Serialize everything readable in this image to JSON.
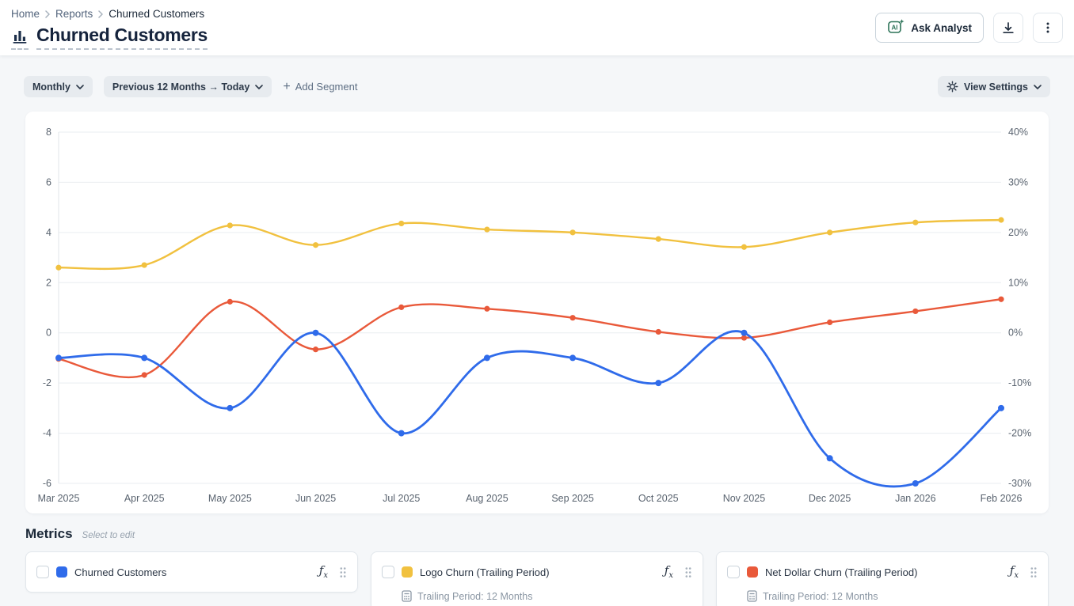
{
  "breadcrumb": {
    "home": "Home",
    "reports": "Reports",
    "current": "Churned Customers"
  },
  "page": {
    "title": "Churned Customers"
  },
  "header_actions": {
    "ai_badge": "AI",
    "ask_analyst": "Ask Analyst"
  },
  "toolbar": {
    "granularity": "Monthly",
    "date_range": "Previous 12 Months → Today",
    "add_segment": "Add Segment",
    "view_settings": "View Settings"
  },
  "icons": {
    "add": "+",
    "formula_f": "ƒ",
    "formula_x": "x"
  },
  "metrics": {
    "title": "Metrics",
    "subtitle": "Select to edit",
    "cards": [
      {
        "label": "Churned Customers",
        "color": "#2f6bea"
      },
      {
        "label": "Logo Churn (Trailing Period)",
        "color": "#f1c13f",
        "detail": "Trailing Period: 12 Months"
      },
      {
        "label": "Net Dollar Churn (Trailing Period)",
        "color": "#e9593a",
        "detail": "Trailing Period: 12 Months"
      }
    ]
  },
  "chart_data": {
    "type": "line",
    "smooth": true,
    "grid": true,
    "x": [
      "Mar 2025",
      "Apr 2025",
      "May 2025",
      "Jun 2025",
      "Jul 2025",
      "Aug 2025",
      "Sep 2025",
      "Oct 2025",
      "Nov 2025",
      "Dec 2025",
      "Jan 2026",
      "Feb 2026"
    ],
    "left_axis": {
      "min": -6,
      "max": 8,
      "ticks": [
        8,
        6,
        4,
        2,
        0,
        -2,
        -4,
        -6
      ]
    },
    "right_axis": {
      "min": -30,
      "max": 40,
      "ticks": [
        40,
        30,
        20,
        10,
        0,
        -10,
        -20,
        -30
      ],
      "suffix": "%"
    },
    "legend_position": "none",
    "series": [
      {
        "name": "Churned Customers",
        "axis": "left",
        "color": "#2f6bea",
        "values": [
          -1,
          -1,
          -3,
          0,
          -4,
          -1,
          -1,
          -2,
          0,
          -5,
          -6,
          -3
        ]
      },
      {
        "name": "Logo Churn (Trailing Period)",
        "axis": "right",
        "color": "#f1c13f",
        "values": [
          13,
          13.5,
          21.4,
          17.5,
          21.8,
          20.6,
          20,
          18.7,
          17.1,
          20,
          22,
          22.5
        ]
      },
      {
        "name": "Net Dollar Churn (Trailing Period)",
        "axis": "right",
        "color": "#e9593a",
        "values": [
          -5.2,
          -8.4,
          6.2,
          -3.3,
          5.1,
          4.8,
          3,
          0.2,
          -1,
          2.1,
          4.3,
          6.7
        ]
      }
    ]
  }
}
